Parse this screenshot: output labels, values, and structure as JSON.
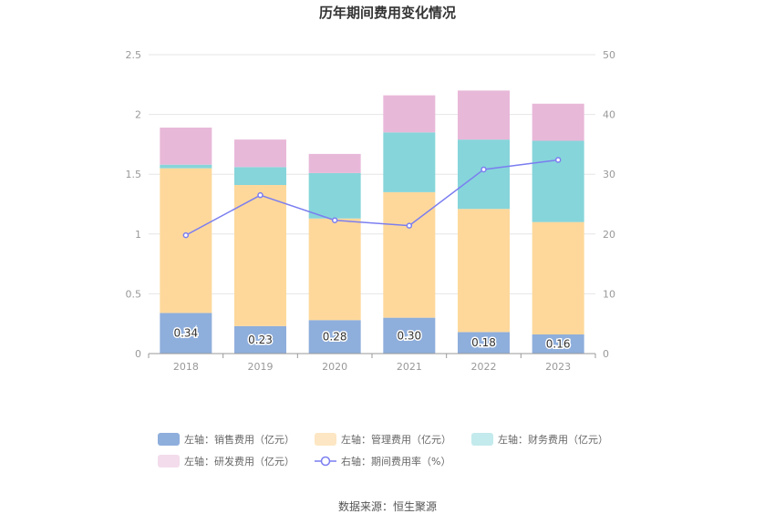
{
  "chart_data": {
    "type": "bar",
    "title": "历年期间费用变化情况",
    "categories": [
      "2018",
      "2019",
      "2020",
      "2021",
      "2022",
      "2023"
    ],
    "left_axis": {
      "ylim": [
        0,
        2.5
      ],
      "ticks": [
        "0",
        "0.5",
        "1",
        "1.5",
        "2",
        "2.5"
      ]
    },
    "right_axis": {
      "ylim": [
        0,
        50
      ],
      "ticks": [
        "0",
        "10",
        "20",
        "30",
        "40",
        "50"
      ]
    },
    "series": [
      {
        "name": "左轴：销售费用（亿元）",
        "kind": "bar",
        "axis": "left",
        "stack": "a",
        "color": "#8eaedc",
        "values": [
          0.34,
          0.23,
          0.28,
          0.3,
          0.18,
          0.16
        ],
        "labels": [
          "0.34",
          "0.23",
          "0.28",
          "0.30",
          "0.18",
          "0.16"
        ]
      },
      {
        "name": "左轴：管理费用（亿元）",
        "kind": "bar",
        "axis": "left",
        "stack": "a",
        "color": "#fed89b",
        "values": [
          1.21,
          1.18,
          0.85,
          1.05,
          1.03,
          0.94
        ]
      },
      {
        "name": "左轴：财务费用（亿元）",
        "kind": "bar",
        "axis": "left",
        "stack": "a",
        "color": "#86d5da",
        "values": [
          0.03,
          0.15,
          0.38,
          0.5,
          0.58,
          0.68
        ]
      },
      {
        "name": "左轴：研发费用（亿元）",
        "kind": "bar",
        "axis": "left",
        "stack": "a",
        "color": "#e8b8d9",
        "values": [
          0.31,
          0.23,
          0.16,
          0.31,
          0.41,
          0.31
        ]
      },
      {
        "name": "右轴：期间费用率（%）",
        "kind": "line",
        "axis": "right",
        "color": "#7b7ef0",
        "values": [
          19.8,
          26.5,
          22.3,
          21.4,
          30.8,
          32.4
        ]
      }
    ],
    "grid": true,
    "legend_position": "bottom"
  },
  "source": "数据来源：恒生聚源"
}
